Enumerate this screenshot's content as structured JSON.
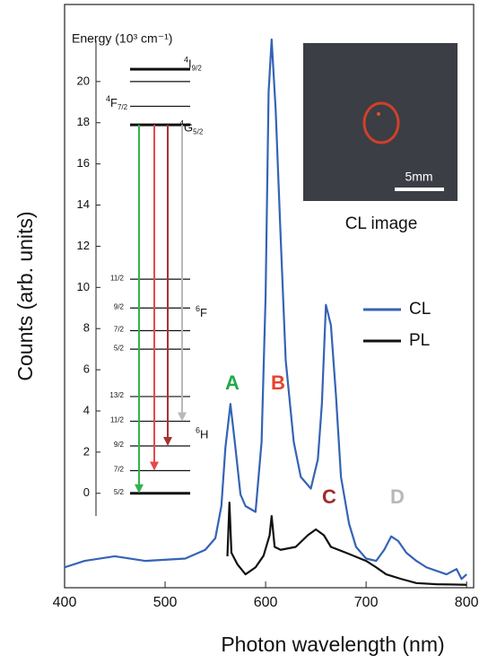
{
  "chart_data": [
    {
      "type": "line",
      "xlabel": "Photon wavelength (nm)",
      "ylabel": "Counts (arb. units)",
      "xlim": [
        400,
        807
      ],
      "xticks": [
        400,
        500,
        600,
        700,
        800
      ],
      "ylim": [
        0,
        100
      ],
      "legend": "right",
      "series": [
        {
          "name": "CL",
          "color": "#3563b5",
          "x": [
            400,
            420,
            450,
            480,
            520,
            540,
            550,
            556,
            560,
            565,
            570,
            575,
            580,
            590,
            596,
            600,
            603,
            606,
            610,
            615,
            620,
            628,
            635,
            645,
            652,
            656,
            660,
            665,
            670,
            675,
            683,
            690,
            700,
            710,
            718,
            725,
            732,
            740,
            750,
            760,
            780,
            790,
            795,
            800
          ],
          "values": [
            3.5,
            4.6,
            5.4,
            4.6,
            5,
            6.5,
            8.5,
            14,
            24,
            31.5,
            24,
            16,
            14,
            13,
            25,
            50,
            85,
            94,
            82,
            60,
            39,
            25,
            19,
            17,
            22,
            31.5,
            48.5,
            45,
            33,
            19,
            11,
            7,
            5,
            4.6,
            6.5,
            8.8,
            8,
            6,
            4.6,
            3.5,
            2.3,
            3.2,
            1.5,
            2.3
          ]
        },
        {
          "name": "PL",
          "color": "#111111",
          "x": [
            562,
            564,
            566,
            572,
            580,
            590,
            598,
            604,
            606,
            609,
            615,
            630,
            642,
            650,
            658,
            665,
            680,
            700,
            710,
            720,
            735,
            750,
            770,
            800
          ],
          "values": [
            5.4,
            14.6,
            6,
            4,
            2.3,
            3.5,
            5.5,
            9,
            12.3,
            7,
            6.5,
            7,
            9,
            10,
            9,
            7,
            6,
            4.6,
            3.5,
            2.3,
            1.5,
            0.8,
            0.6,
            0.5
          ]
        }
      ],
      "annotations": [
        {
          "text": "A",
          "color": "#22a84a"
        },
        {
          "text": "B",
          "color": "#e8412c"
        },
        {
          "text": "C",
          "color": "#a02c2c"
        },
        {
          "text": "D",
          "color": "#b8b8b8"
        }
      ],
      "inset": {
        "scale_label": "5mm",
        "caption": "CL image"
      }
    },
    {
      "type": "levels",
      "title": "Energy (10³ cm⁻¹)",
      "ylim": [
        -1.1,
        22
      ],
      "yticks": [
        0,
        2,
        4,
        6,
        8,
        10,
        12,
        14,
        16,
        18,
        20
      ],
      "levels": [
        {
          "value": 0,
          "label": "5/2",
          "bold": true
        },
        {
          "value": 1.1,
          "label": "7/2"
        },
        {
          "value": 2.3,
          "label": "9/2"
        },
        {
          "value": 3.5,
          "label": "11/2"
        },
        {
          "value": 4.7,
          "label": "13/2"
        },
        {
          "value": 7.0,
          "label": "5/2"
        },
        {
          "value": 7.9,
          "label": "7/2"
        },
        {
          "value": 9.0,
          "label": "9/2"
        },
        {
          "value": 10.4,
          "label": "11/2"
        },
        {
          "value": 17.9,
          "bold": true
        },
        {
          "value": 18.8
        },
        {
          "value": 20.0
        },
        {
          "value": 20.6,
          "bold": true
        }
      ],
      "terms": [
        {
          "sup": "6",
          "name": "H",
          "value": 2.8
        },
        {
          "sup": "6",
          "name": "F",
          "value": 8.7
        },
        {
          "sup": "4",
          "name": "G",
          "sub": "5/2",
          "value": 17.7
        },
        {
          "sup": "4",
          "name": "F",
          "sub": "7/2",
          "value": 18.9
        },
        {
          "sup": "4",
          "name": "I",
          "sub": "9/2",
          "value": 20.8
        }
      ],
      "transitions": [
        {
          "from": 17.9,
          "to": 0,
          "color": "#2fb34f"
        },
        {
          "from": 17.9,
          "to": 1.1,
          "color": "#e84848"
        },
        {
          "from": 17.9,
          "to": 2.3,
          "color": "#a83232"
        },
        {
          "from": 17.9,
          "to": 3.5,
          "color": "#b9b9b9"
        }
      ]
    }
  ]
}
